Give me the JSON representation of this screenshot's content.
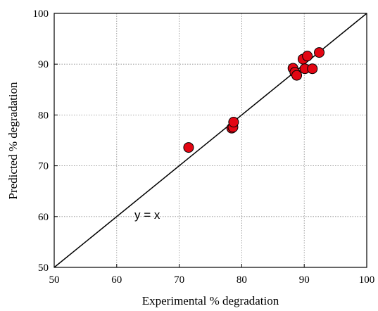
{
  "chart_data": {
    "type": "scatter",
    "title": "",
    "xlabel": "Experimental % degradation",
    "ylabel": "Predicted % degradation",
    "xlim": [
      50,
      100
    ],
    "ylim": [
      50,
      100
    ],
    "x_ticks": [
      "50",
      "60",
      "70",
      "80",
      "90",
      "100"
    ],
    "y_ticks": [
      "50",
      "60",
      "70",
      "80",
      "90",
      "100"
    ],
    "grid": true,
    "reference_line": {
      "label": "y = x",
      "slope": 1,
      "intercept": 0
    },
    "series": [
      {
        "color": "#e30613",
        "edge_color": "#000000",
        "points": [
          {
            "x": 71.5,
            "y": 73.6
          },
          {
            "x": 78.4,
            "y": 77.4
          },
          {
            "x": 78.6,
            "y": 77.6
          },
          {
            "x": 78.7,
            "y": 78.6
          },
          {
            "x": 88.2,
            "y": 89.2
          },
          {
            "x": 88.5,
            "y": 88.4
          },
          {
            "x": 88.8,
            "y": 87.8
          },
          {
            "x": 89.8,
            "y": 91.0
          },
          {
            "x": 90.1,
            "y": 89.1
          },
          {
            "x": 90.5,
            "y": 91.6
          },
          {
            "x": 91.3,
            "y": 89.1
          },
          {
            "x": 92.4,
            "y": 92.3
          }
        ]
      }
    ]
  }
}
